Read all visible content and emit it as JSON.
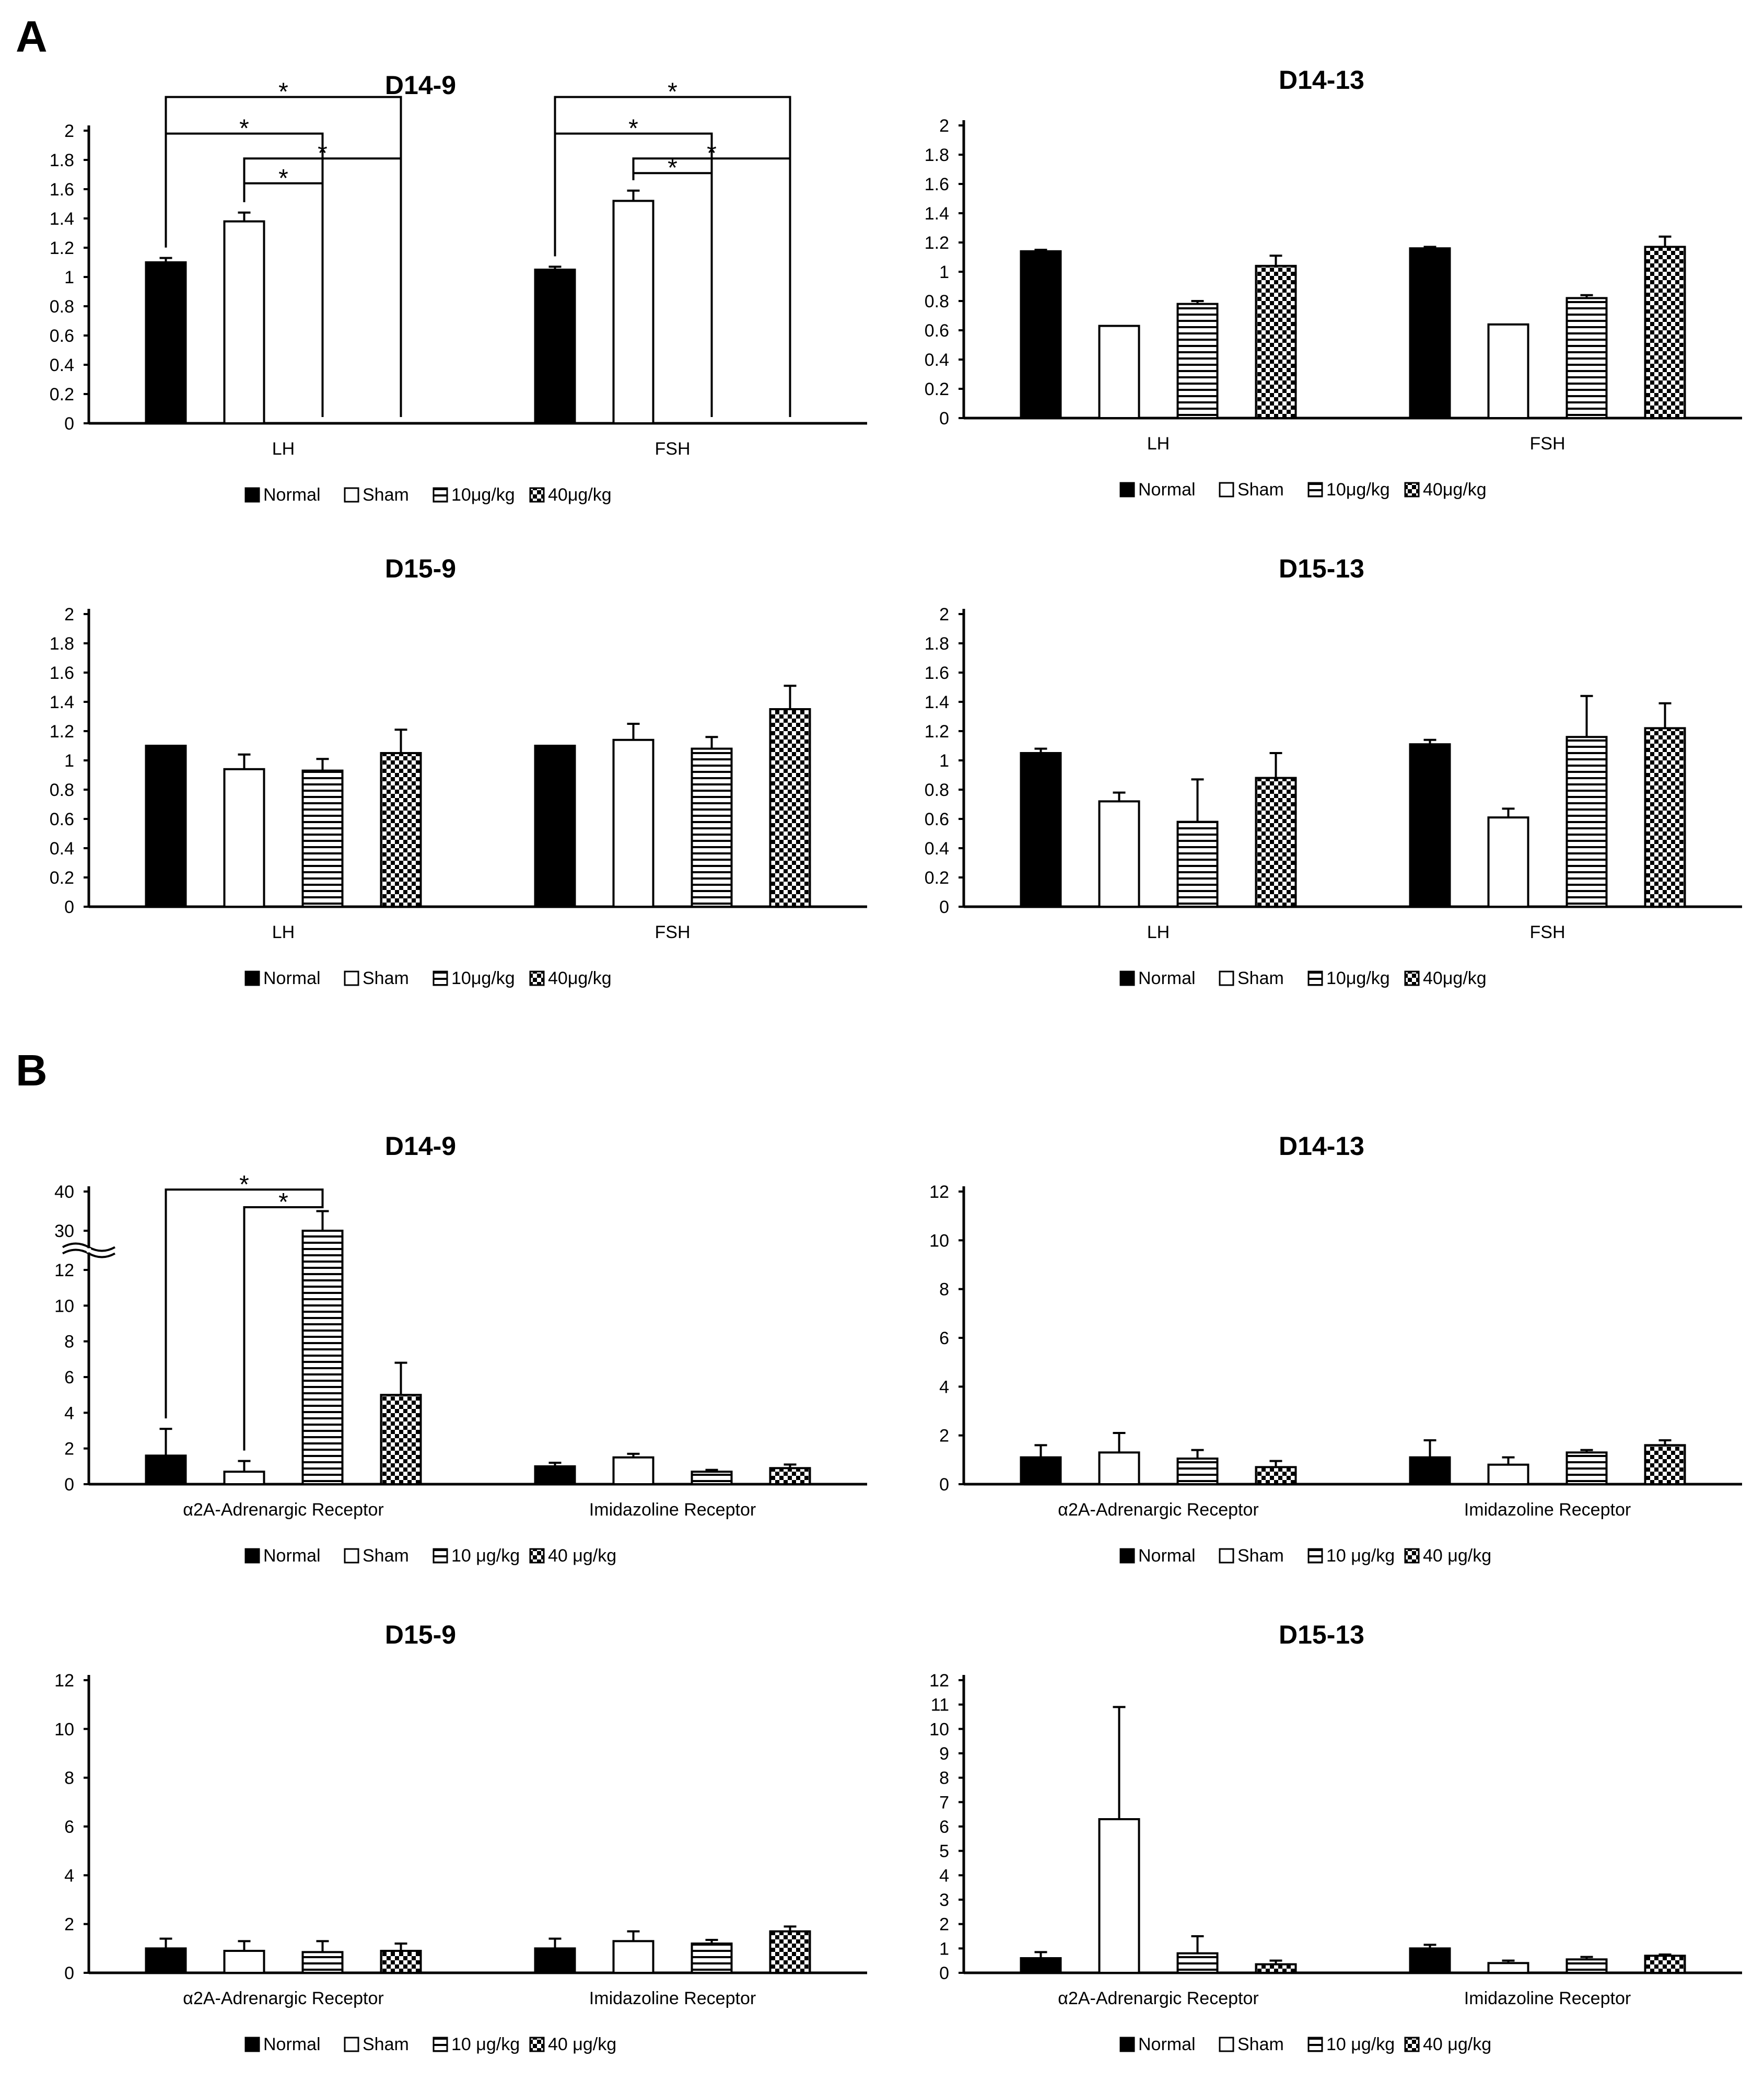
{
  "panel_labels": {
    "a": "A",
    "b": "B"
  },
  "colors": {
    "bar_outline": "#000000",
    "background": "#ffffff"
  },
  "chart_data": [
    {
      "type": "bar",
      "title": "D14-9",
      "categories": [
        "LH",
        "FSH"
      ],
      "ylim": [
        0,
        2
      ],
      "yticks": [
        "0",
        "0.2",
        "0.4",
        "0.6",
        "0.8",
        "1",
        "1.2",
        "1.4",
        "1.6",
        "1.8",
        "2"
      ],
      "series": [
        {
          "name": "Normal",
          "legend": "Normal",
          "pattern": "solid",
          "values": [
            1.1,
            1.05
          ],
          "errors": [
            0.03,
            0.02
          ]
        },
        {
          "name": "Sham",
          "legend": "Sham",
          "pattern": "open",
          "values": [
            1.38,
            1.52
          ],
          "errors": [
            0.06,
            0.07
          ]
        },
        {
          "name": "10μg/kg",
          "legend": "10μg/kg",
          "pattern": "hlines",
          "values": [
            0,
            0
          ],
          "errors": [
            0,
            0
          ]
        },
        {
          "name": "40μg/kg",
          "legend": "40μg/kg",
          "pattern": "checker",
          "values": [
            0,
            0
          ],
          "errors": [
            0,
            0
          ]
        }
      ],
      "significance": [
        {
          "category": 0,
          "from": 0,
          "to": 3,
          "level": 2.23,
          "label": "*"
        },
        {
          "category": 0,
          "from": 0,
          "to": 2,
          "level": 1.98,
          "label": "*"
        },
        {
          "category": 0,
          "from": 1,
          "to": 3,
          "level": 1.81,
          "label": "*"
        },
        {
          "category": 0,
          "from": 1,
          "to": 2,
          "level": 1.64,
          "label": "*"
        },
        {
          "category": 1,
          "from": 0,
          "to": 3,
          "level": 2.23,
          "label": "*"
        },
        {
          "category": 1,
          "from": 0,
          "to": 2,
          "level": 1.98,
          "label": "*"
        },
        {
          "category": 1,
          "from": 1,
          "to": 3,
          "level": 1.81,
          "label": "*"
        },
        {
          "category": 1,
          "from": 1,
          "to": 2,
          "level": 1.71,
          "label": "*"
        }
      ]
    },
    {
      "type": "bar",
      "title": "D14-13",
      "categories": [
        "LH",
        "FSH"
      ],
      "ylim": [
        0,
        2
      ],
      "yticks": [
        "0",
        "0.2",
        "0.4",
        "0.6",
        "0.8",
        "1",
        "1.2",
        "1.4",
        "1.6",
        "1.8",
        "2"
      ],
      "series": [
        {
          "name": "Normal",
          "legend": "Normal",
          "pattern": "solid",
          "values": [
            1.14,
            1.16
          ],
          "errors": [
            0.01,
            0.01
          ]
        },
        {
          "name": "Sham",
          "legend": "Sham",
          "pattern": "open",
          "values": [
            0.63,
            0.64
          ],
          "errors": [
            0.0,
            0.0
          ]
        },
        {
          "name": "10μg/kg",
          "legend": "10μg/kg",
          "pattern": "hlines",
          "values": [
            0.78,
            0.82
          ],
          "errors": [
            0.02,
            0.02
          ]
        },
        {
          "name": "40μg/kg",
          "legend": "40μg/kg",
          "pattern": "checker",
          "values": [
            1.04,
            1.17
          ],
          "errors": [
            0.07,
            0.07
          ]
        }
      ]
    },
    {
      "type": "bar",
      "title": "D15-9",
      "categories": [
        "LH",
        "FSH"
      ],
      "ylim": [
        0,
        2
      ],
      "yticks": [
        "0",
        "0.2",
        "0.4",
        "0.6",
        "0.8",
        "1",
        "1.2",
        "1.4",
        "1.6",
        "1.8",
        "2"
      ],
      "series": [
        {
          "name": "Normal",
          "legend": "Normal",
          "pattern": "solid",
          "values": [
            1.1,
            1.1
          ],
          "errors": [
            0.0,
            0.0
          ]
        },
        {
          "name": "Sham",
          "legend": "Sham",
          "pattern": "open",
          "values": [
            0.94,
            1.14
          ],
          "errors": [
            0.1,
            0.11
          ]
        },
        {
          "name": "10μg/kg",
          "legend": "10μg/kg",
          "pattern": "hlines",
          "values": [
            0.93,
            1.08
          ],
          "errors": [
            0.08,
            0.08
          ]
        },
        {
          "name": "40μg/kg",
          "legend": "40μg/kg",
          "pattern": "checker",
          "values": [
            1.05,
            1.35
          ],
          "errors": [
            0.16,
            0.16
          ]
        }
      ]
    },
    {
      "type": "bar",
      "title": "D15-13",
      "categories": [
        "LH",
        "FSH"
      ],
      "ylim": [
        0,
        2
      ],
      "yticks": [
        "0",
        "0.2",
        "0.4",
        "0.6",
        "0.8",
        "1",
        "1.2",
        "1.4",
        "1.6",
        "1.8",
        "2"
      ],
      "series": [
        {
          "name": "Normal",
          "legend": "Normal",
          "pattern": "solid",
          "values": [
            1.05,
            1.11
          ],
          "errors": [
            0.03,
            0.03
          ]
        },
        {
          "name": "Sham",
          "legend": "Sham",
          "pattern": "open",
          "values": [
            0.72,
            0.61
          ],
          "errors": [
            0.06,
            0.06
          ]
        },
        {
          "name": "10μg/kg",
          "legend": "10μg/kg",
          "pattern": "hlines",
          "values": [
            0.58,
            1.16
          ],
          "errors": [
            0.29,
            0.28
          ]
        },
        {
          "name": "40μg/kg",
          "legend": "40μg/kg",
          "pattern": "checker",
          "values": [
            0.88,
            1.22
          ],
          "errors": [
            0.17,
            0.17
          ]
        }
      ]
    },
    {
      "type": "bar",
      "title": "D14-9",
      "categories": [
        "α2A-Adrenargic Receptor",
        "Imidazoline Receptor"
      ],
      "ylim": [
        0,
        40
      ],
      "broken_axis": true,
      "yticks": [
        "0",
        "2",
        "4",
        "6",
        "8",
        "10",
        "12",
        "30",
        "40"
      ],
      "series": [
        {
          "name": "Normal",
          "legend": "Normal",
          "pattern": "solid",
          "values": [
            1.6,
            1.0
          ],
          "errors": [
            1.5,
            0.2
          ]
        },
        {
          "name": "Sham",
          "legend": "Sham",
          "pattern": "open",
          "values": [
            0.7,
            1.5
          ],
          "errors": [
            0.6,
            0.2
          ]
        },
        {
          "name": "10 μg/kg",
          "legend": "10 μg/kg",
          "pattern": "hlines",
          "values": [
            30.0,
            0.7
          ],
          "errors": [
            5.0,
            0.1
          ]
        },
        {
          "name": "40 μg/kg",
          "legend": "40 μg/kg",
          "pattern": "checker",
          "values": [
            5.0,
            0.9
          ],
          "errors": [
            1.8,
            0.2
          ]
        }
      ],
      "significance": [
        {
          "category": 0,
          "from": 0,
          "to": 2,
          "level": 40.5,
          "label": "*"
        },
        {
          "category": 0,
          "from": 1,
          "to": 2,
          "level": 36.0,
          "label": "*"
        }
      ]
    },
    {
      "type": "bar",
      "title": "D14-13",
      "categories": [
        "α2A-Adrenargic Receptor",
        "Imidazoline Receptor"
      ],
      "ylim": [
        0,
        12
      ],
      "yticks": [
        "0",
        "2",
        "4",
        "6",
        "8",
        "10",
        "12"
      ],
      "series": [
        {
          "name": "Normal",
          "legend": "Normal",
          "pattern": "solid",
          "values": [
            1.1,
            1.1
          ],
          "errors": [
            0.5,
            0.7
          ]
        },
        {
          "name": "Sham",
          "legend": "Sham",
          "pattern": "open",
          "values": [
            1.3,
            0.8
          ],
          "errors": [
            0.8,
            0.3
          ]
        },
        {
          "name": "10 μg/kg",
          "legend": "10 μg/kg",
          "pattern": "hlines",
          "values": [
            1.05,
            1.3
          ],
          "errors": [
            0.35,
            0.1
          ]
        },
        {
          "name": "40 μg/kg",
          "legend": "40 μg/kg",
          "pattern": "checker",
          "values": [
            0.7,
            1.6
          ],
          "errors": [
            0.25,
            0.2
          ]
        }
      ]
    },
    {
      "type": "bar",
      "title": "D15-9",
      "categories": [
        "α2A-Adrenargic Receptor",
        "Imidazoline Receptor"
      ],
      "ylim": [
        0,
        12
      ],
      "yticks": [
        "0",
        "2",
        "4",
        "6",
        "8",
        "10",
        "12"
      ],
      "series": [
        {
          "name": "Normal",
          "legend": "Normal",
          "pattern": "solid",
          "values": [
            1.0,
            1.0
          ],
          "errors": [
            0.4,
            0.4
          ]
        },
        {
          "name": "Sham",
          "legend": "Sham",
          "pattern": "open",
          "values": [
            0.9,
            1.3
          ],
          "errors": [
            0.4,
            0.4
          ]
        },
        {
          "name": "10 μg/kg",
          "legend": "10 μg/kg",
          "pattern": "hlines",
          "values": [
            0.85,
            1.2
          ],
          "errors": [
            0.45,
            0.15
          ]
        },
        {
          "name": "40 μg/kg",
          "legend": "40 μg/kg",
          "pattern": "checker",
          "values": [
            0.9,
            1.7
          ],
          "errors": [
            0.3,
            0.2
          ]
        }
      ]
    },
    {
      "type": "bar",
      "title": "D15-13",
      "categories": [
        "α2A-Adrenargic Receptor",
        "Imidazoline Receptor"
      ],
      "ylim": [
        0,
        12
      ],
      "yticks": [
        "0",
        "1",
        "2",
        "3",
        "4",
        "5",
        "6",
        "7",
        "8",
        "9",
        "10",
        "11",
        "12"
      ],
      "series": [
        {
          "name": "Normal",
          "legend": "Normal",
          "pattern": "solid",
          "values": [
            0.6,
            1.0
          ],
          "errors": [
            0.25,
            0.15
          ]
        },
        {
          "name": "Sham",
          "legend": "Sham",
          "pattern": "open",
          "values": [
            6.3,
            0.4
          ],
          "errors": [
            4.6,
            0.1
          ]
        },
        {
          "name": "10 μg/kg",
          "legend": "10 μg/kg",
          "pattern": "hlines",
          "values": [
            0.8,
            0.55
          ],
          "errors": [
            0.7,
            0.1
          ]
        },
        {
          "name": "40 μg/kg",
          "legend": "40 μg/kg",
          "pattern": "checker",
          "values": [
            0.35,
            0.7
          ],
          "errors": [
            0.15,
            0.05
          ]
        }
      ]
    }
  ]
}
